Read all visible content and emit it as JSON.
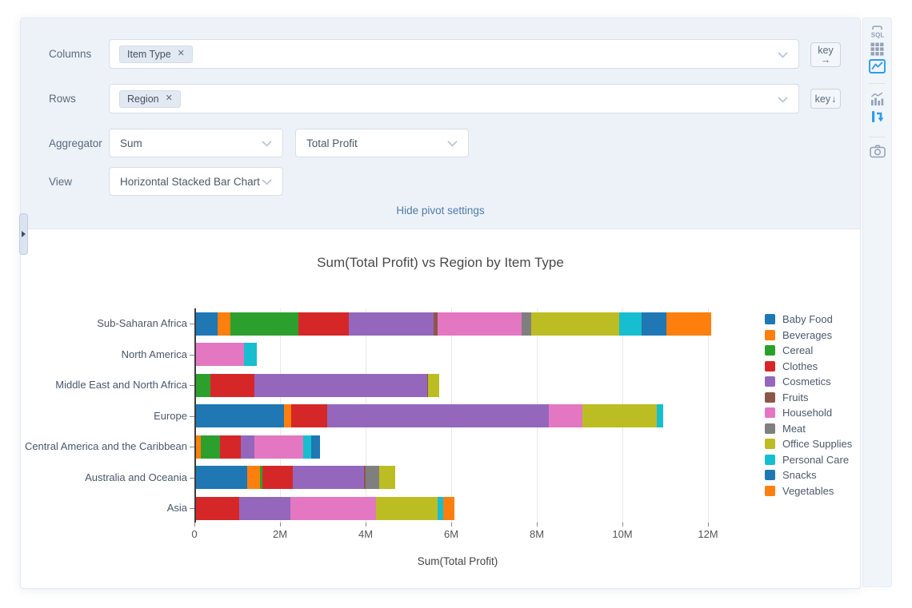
{
  "panel": {
    "columns_label": "Columns",
    "columns_tag": "Item Type",
    "rows_label": "Rows",
    "rows_tag": "Region",
    "aggregator_label": "Aggregator",
    "aggregator_value": "Sum",
    "aggregator_field_value": "Total Profit",
    "view_label": "View",
    "view_value": "Horizontal Stacked Bar Chart",
    "key_by_columns_label": "key",
    "key_by_columns_arrow": "→",
    "key_by_rows_label": "key",
    "key_by_rows_arrow": "↓",
    "hide_link": "Hide pivot settings",
    "close_icon_glyph": "✕"
  },
  "toolbar": {
    "icons": [
      {
        "name": "sql-editor-icon",
        "active": false
      },
      {
        "name": "data-grid-icon",
        "active": false
      },
      {
        "name": "chart-image-icon",
        "active": true
      },
      {
        "name": "chart-builder-icon",
        "active": false
      },
      {
        "name": "pivot-icon",
        "active": true
      },
      {
        "name": "camera-icon",
        "active": false
      }
    ],
    "accent_color": "#2d9cec",
    "idle_color": "#93a1b5"
  },
  "chart_data": {
    "type": "bar",
    "orientation": "horizontal",
    "stacked": true,
    "title": "Sum(Total Profit) vs Region by Item Type",
    "xlabel": "Sum(Total Profit)",
    "ylabel": "",
    "unit": "millions",
    "xlim": [
      0,
      12.45
    ],
    "grid": true,
    "legend_position": "right",
    "categories": [
      "Sub-Saharan Africa",
      "North America",
      "Middle East and North Africa",
      "Europe",
      "Central America and the Caribbean",
      "Australia and Oceania",
      "Asia"
    ],
    "x_ticks": [
      "0",
      "2M",
      "4M",
      "6M",
      "8M",
      "10M",
      "12M"
    ],
    "x_tick_values": [
      0,
      2,
      4,
      6,
      8,
      10,
      12
    ],
    "series": [
      {
        "name": "Baby Food",
        "color": "#1f77b4",
        "values": [
          0.5,
          0,
          0,
          2.06,
          0,
          1.2,
          0
        ]
      },
      {
        "name": "Beverages",
        "color": "#ff7f0e",
        "values": [
          0.31,
          0,
          0,
          0.16,
          0.11,
          0.3,
          0
        ]
      },
      {
        "name": "Cereal",
        "color": "#2ca02c",
        "values": [
          1.59,
          0,
          0.34,
          0,
          0.45,
          0.06,
          0
        ]
      },
      {
        "name": "Clothes",
        "color": "#d62728",
        "values": [
          1.17,
          0,
          1.02,
          0.85,
          0.49,
          0.71,
          1.01
        ]
      },
      {
        "name": "Cosmetics",
        "color": "#9467bd",
        "values": [
          1.99,
          0,
          4.04,
          5.17,
          0.32,
          1.66,
          1.2
        ]
      },
      {
        "name": "Fruits",
        "color": "#8c564b",
        "values": [
          0.08,
          0,
          0.03,
          0,
          0,
          0.04,
          0
        ]
      },
      {
        "name": "Household",
        "color": "#e377c2",
        "values": [
          1.96,
          1.12,
          0,
          0.79,
          1.13,
          0,
          2.0
        ]
      },
      {
        "name": "Meat",
        "color": "#7f7f7f",
        "values": [
          0.24,
          0,
          0,
          0,
          0,
          0.31,
          0
        ]
      },
      {
        "name": "Office Supplies",
        "color": "#bcbd22",
        "values": [
          2.04,
          0,
          0.25,
          1.74,
          0,
          0.38,
          1.44
        ]
      },
      {
        "name": "Personal Care",
        "color": "#17becf",
        "values": [
          0.53,
          0.3,
          0,
          0.14,
          0.2,
          0,
          0.12
        ]
      },
      {
        "name": "Snacks",
        "color": "#1f77b4",
        "values": [
          0.58,
          0,
          0,
          0,
          0.2,
          0,
          0
        ]
      },
      {
        "name": "Vegetables",
        "color": "#ff7f0e",
        "values": [
          1.05,
          0,
          0,
          0,
          0,
          0,
          0.26
        ]
      }
    ]
  }
}
